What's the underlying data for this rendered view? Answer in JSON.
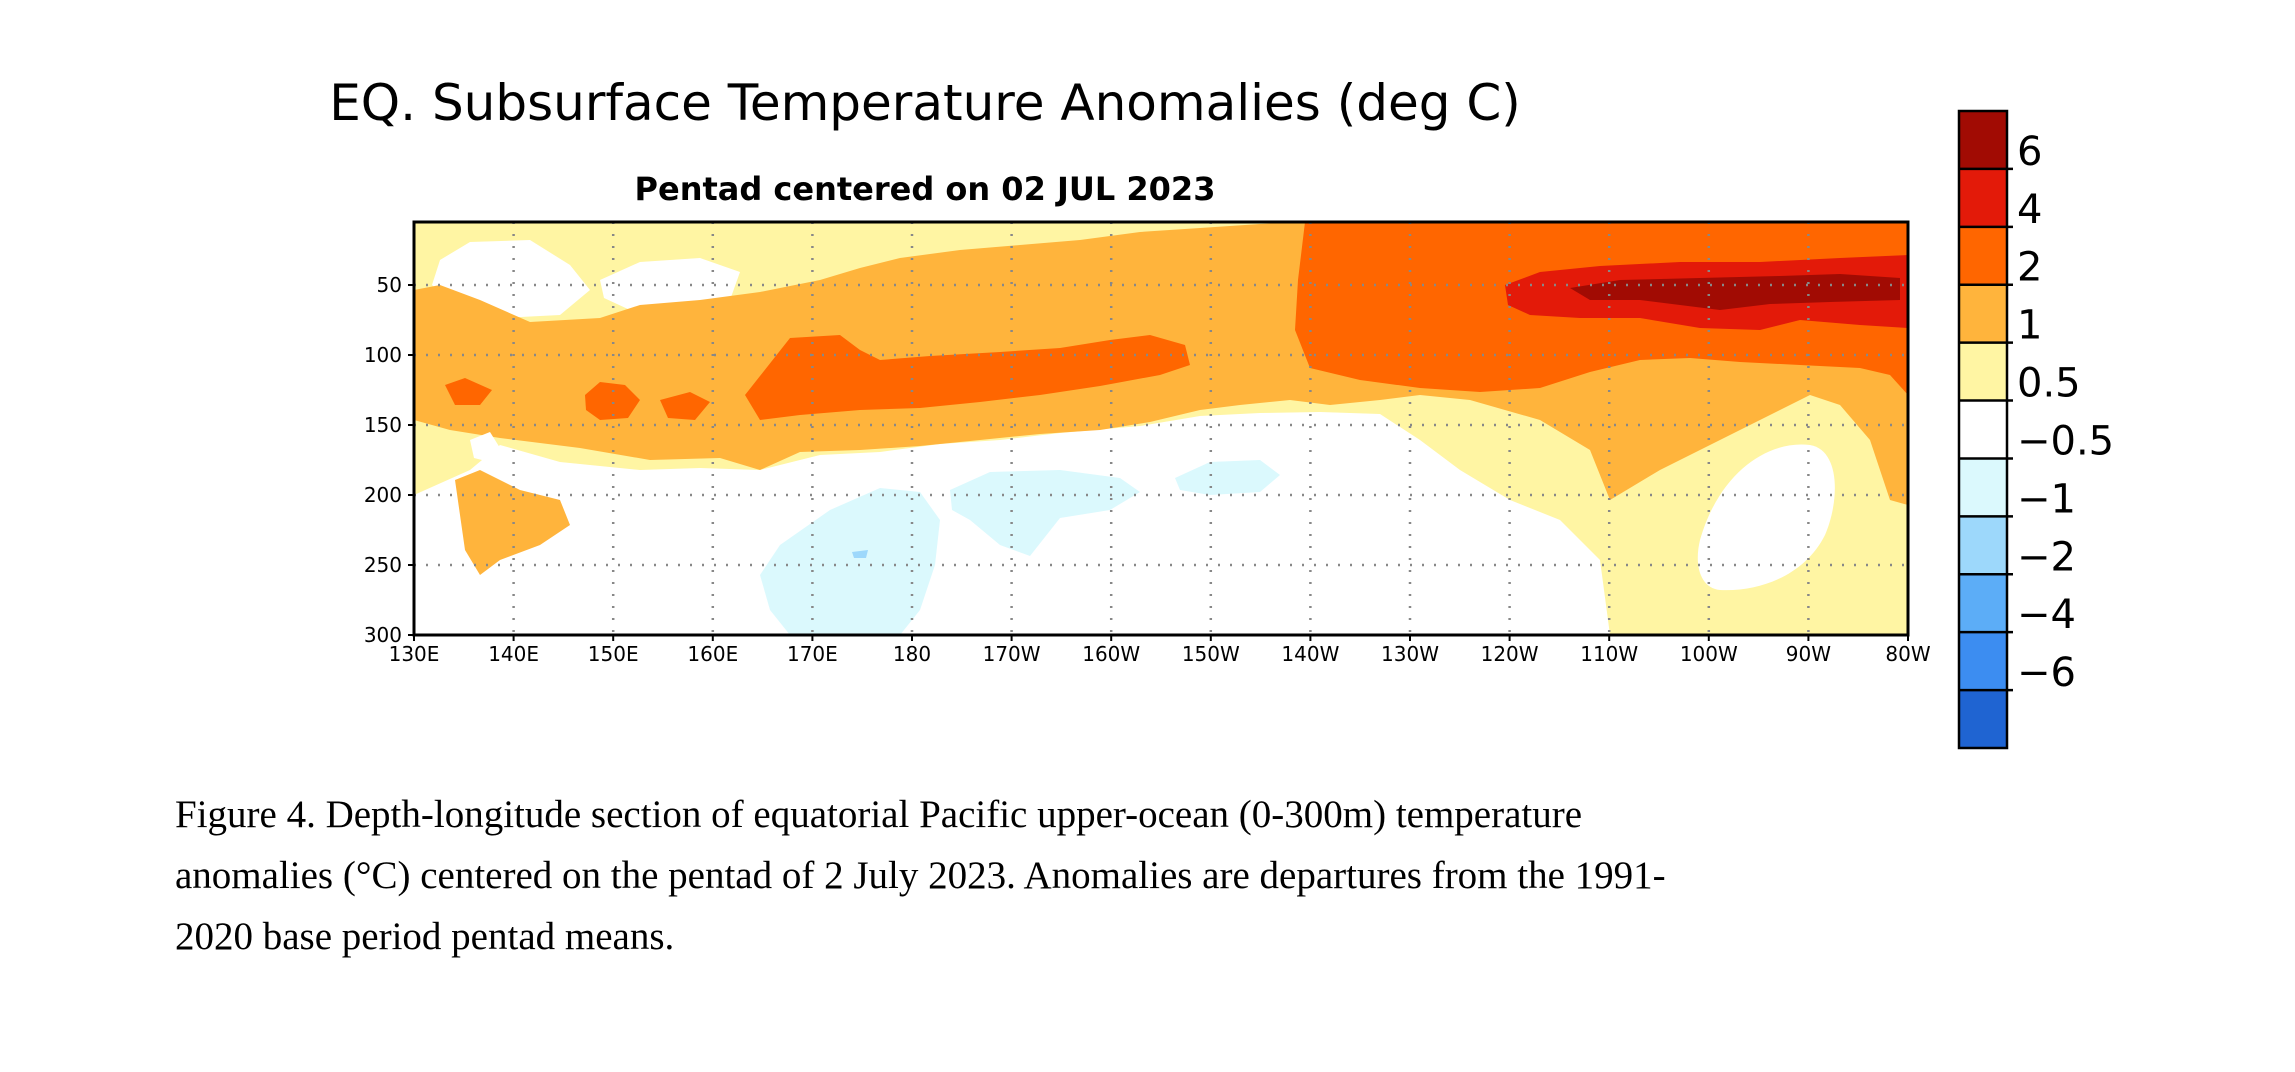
{
  "chart_data": {
    "type": "heatmap",
    "title": "EQ. Subsurface Temperature Anomalies (deg C)",
    "subtitle": "Pentad centered on 02 JUL 2023",
    "xlabel": "",
    "ylabel": "",
    "x_ticks": [
      "130E",
      "140E",
      "150E",
      "160E",
      "170E",
      "180",
      "170W",
      "160W",
      "150W",
      "140W",
      "130W",
      "120W",
      "110W",
      "100W",
      "90W",
      "80W"
    ],
    "x_tick_lon": [
      130,
      140,
      150,
      160,
      170,
      180,
      190,
      200,
      210,
      220,
      230,
      240,
      250,
      260,
      270,
      280
    ],
    "xlim_lon": [
      130,
      280
    ],
    "y_ticks": [
      "50",
      "100",
      "150",
      "200",
      "250",
      "300"
    ],
    "y_tick_values": [
      50,
      100,
      150,
      200,
      250,
      300
    ],
    "ylim_depth_m": [
      5,
      300
    ],
    "y_inverted": true,
    "grid": "dotted",
    "colorbar": {
      "labels": [
        "6",
        "4",
        "2",
        "1",
        "0.5",
        "−0.5",
        "−1",
        "−2",
        "−4",
        "−6"
      ],
      "colors": [
        "#a10b03",
        "#e31a09",
        "#ff6600",
        "#ffb43c",
        "#fff5a3",
        "#ffffff",
        "#dbf9fd",
        "#9dd8fb",
        "#5cadf7",
        "#3c8df1",
        "#1f64d2"
      ]
    },
    "contour_fills": [
      {
        "level": "0.5 to 1",
        "color": "#fff5a3",
        "depth_m": [
          5,
          300
        ],
        "lon": [
          130,
          280
        ],
        "note": "background warm band"
      },
      {
        "level": "1 to 2",
        "color": "#ffb43c",
        "region": "thermocline band 60-180 m across basin, 50-260 m east of 140W"
      },
      {
        "level": "2 to 4",
        "color": "#ff6600",
        "region": "165E-160W near 100-150 m; 140W-80W from surface to 130 m"
      },
      {
        "level": "4 to 6",
        "color": "#e31a09",
        "region": "120W-80W, 30-80 m"
      },
      {
        "level": "> 6",
        "color": "#a10b03",
        "region": "110W-90W, about 50 m"
      },
      {
        "level": "-0.5 to -1",
        "color": "#dbf9fd",
        "region": "patches 170E-150W, 190-300 m"
      },
      {
        "level": "-1 to -2",
        "color": "#9dd8fb",
        "region": "small spot near 175E, 240 m"
      }
    ]
  },
  "caption": {
    "line1": "Figure 4. Depth-longitude section of equatorial Pacific upper-ocean (0-300m) temperature",
    "line2": "anomalies (°C) centered on the pentad of 2 July 2023. Anomalies are departures from the 1991-",
    "line3": "2020 base period pentad means."
  }
}
